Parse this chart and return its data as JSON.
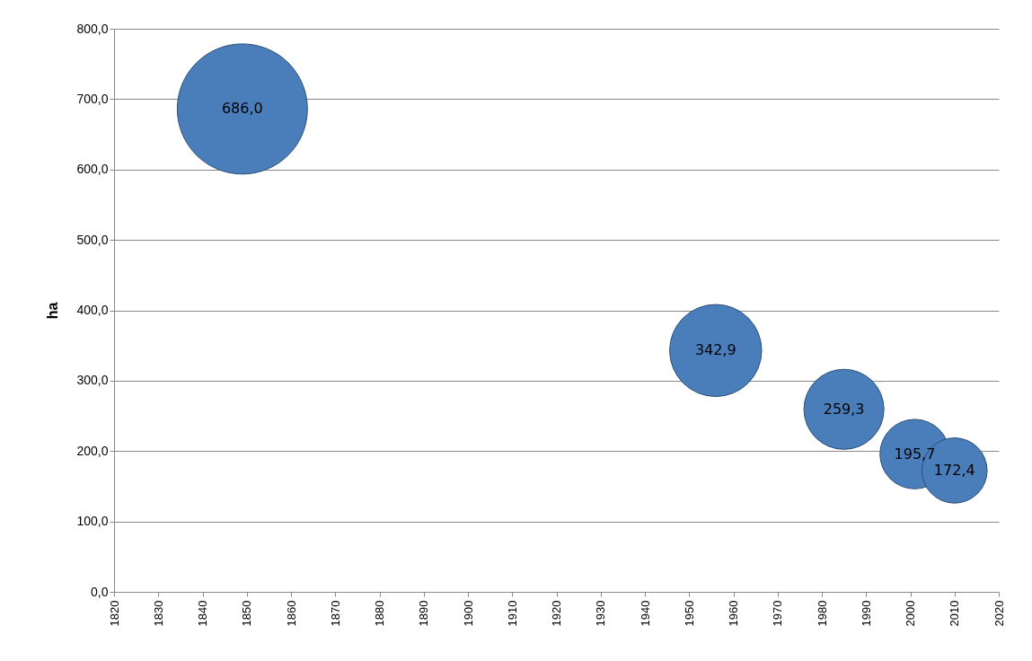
{
  "chart_data": {
    "type": "bubble",
    "ylabel": "ha",
    "x": [
      1849,
      1956,
      1985,
      2001,
      2010
    ],
    "values": [
      686.0,
      342.9,
      259.3,
      195.7,
      172.4
    ],
    "sizes": [
      1,
      0.5,
      0.378,
      0.285,
      0.251
    ],
    "color": "#4a7ebb",
    "value_labels": [
      "686,0",
      "342,9",
      "259,3",
      "195,7",
      "172,4"
    ],
    "xlim": [
      1820,
      2020
    ],
    "xticks": [
      1820,
      1830,
      1840,
      1850,
      1860,
      1870,
      1880,
      1890,
      1900,
      1910,
      1920,
      1930,
      1940,
      1950,
      1960,
      1970,
      1980,
      1990,
      2000,
      2010,
      2020
    ],
    "ylim": [
      0,
      800
    ],
    "yticks": [
      {
        "value": 0,
        "label": "0,0"
      },
      {
        "value": 100,
        "label": "100,0"
      },
      {
        "value": 200,
        "label": "200,0"
      },
      {
        "value": 300,
        "label": "300,0"
      },
      {
        "value": 400,
        "label": "400,0"
      },
      {
        "value": 500,
        "label": "500,0"
      },
      {
        "value": 600,
        "label": "600,0"
      },
      {
        "value": 700,
        "label": "700,0"
      },
      {
        "value": 800,
        "label": "800,0"
      }
    ],
    "grid": "y",
    "legend": false
  }
}
